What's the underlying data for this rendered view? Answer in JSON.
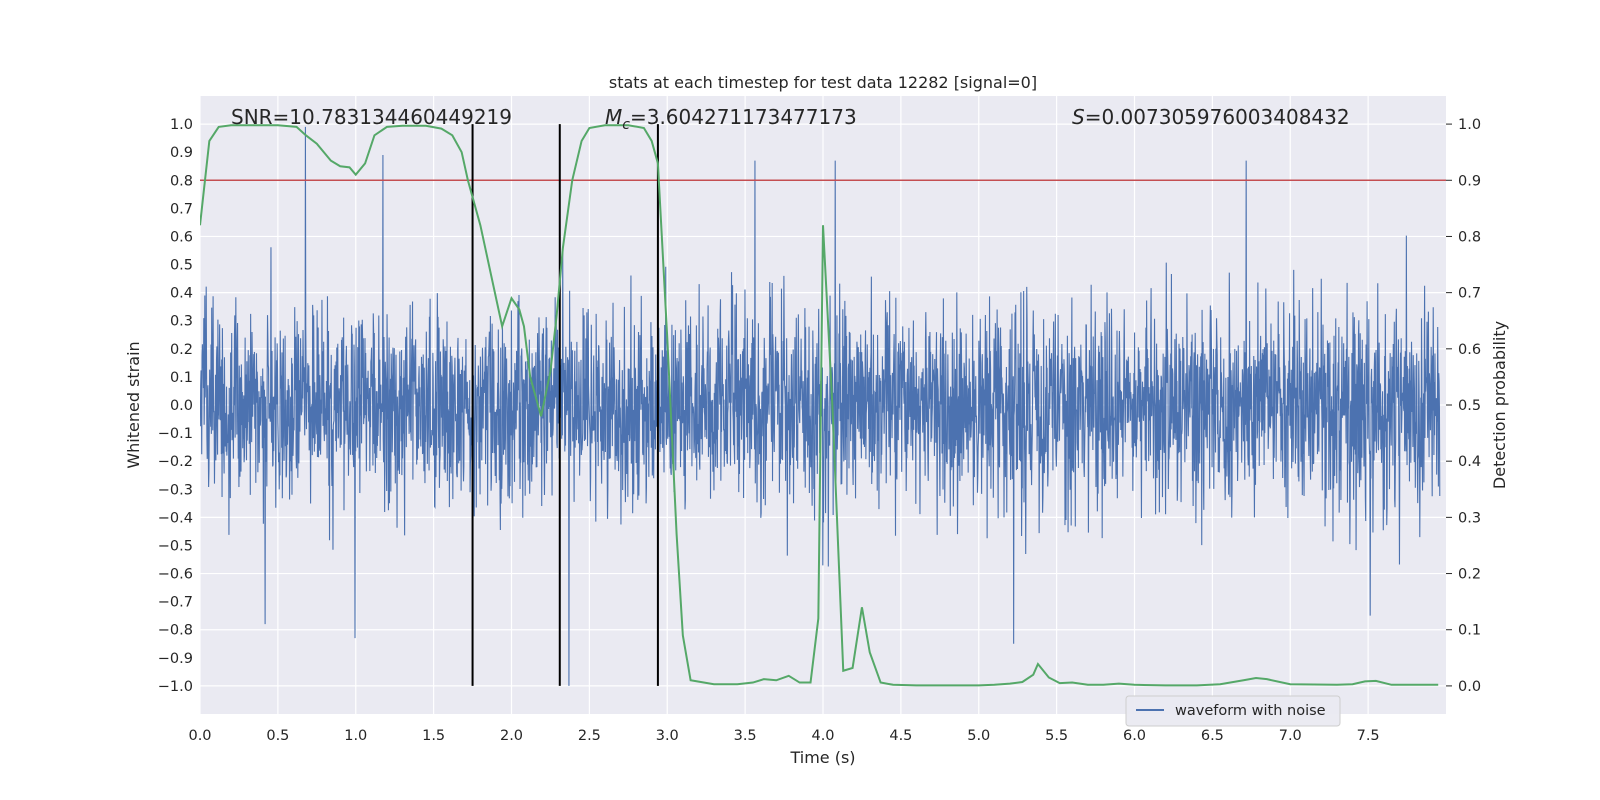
{
  "chart_data": {
    "type": "line",
    "title": "stats at each timestep for test data 12282 [signal=0]",
    "xlabel": "Time (s)",
    "ylabel": "Whitened strain",
    "y2label": "Detection probability",
    "xlim": [
      0,
      8.0
    ],
    "ylim": [
      -1.1,
      1.1
    ],
    "y2lim": [
      -0.05,
      1.05
    ],
    "xticks": [
      0.0,
      0.5,
      1.0,
      1.5,
      2.0,
      2.5,
      3.0,
      3.5,
      4.0,
      4.5,
      5.0,
      5.5,
      6.0,
      6.5,
      7.0,
      7.5
    ],
    "xtick_labels": [
      "0.0",
      "0.5",
      "1.0",
      "1.5",
      "2.0",
      "2.5",
      "3.0",
      "3.5",
      "4.0",
      "4.5",
      "5.0",
      "5.5",
      "6.0",
      "6.5",
      "7.0",
      "7.5"
    ],
    "yticks": [
      -1.0,
      -0.9,
      -0.8,
      -0.7,
      -0.6,
      -0.5,
      -0.4,
      -0.3,
      -0.2,
      -0.1,
      0.0,
      0.1,
      0.2,
      0.3,
      0.4,
      0.5,
      0.6,
      0.7,
      0.8,
      0.9,
      1.0
    ],
    "ytick_labels": [
      "−1.0",
      "−0.9",
      "−0.8",
      "−0.7",
      "−0.6",
      "−0.5",
      "−0.4",
      "−0.3",
      "−0.2",
      "−0.1",
      "0.0",
      "0.1",
      "0.2",
      "0.3",
      "0.4",
      "0.5",
      "0.6",
      "0.7",
      "0.8",
      "0.9",
      "1.0"
    ],
    "y2ticks": [
      0.0,
      0.1,
      0.2,
      0.3,
      0.4,
      0.5,
      0.6,
      0.7,
      0.8,
      0.9,
      1.0
    ],
    "y2tick_labels": [
      "0.0",
      "0.1",
      "0.2",
      "0.3",
      "0.4",
      "0.5",
      "0.6",
      "0.7",
      "0.8",
      "0.9",
      "1.0"
    ],
    "grid": true,
    "legend": {
      "location": "lower-right",
      "entries": [
        "waveform with noise"
      ]
    },
    "annotations": {
      "snr": "SNR=10.783134460449219",
      "mc_symbol": "M",
      "mc_sub": "c",
      "mc_value": "=3.604271173477173",
      "s_symbol": "S",
      "s_value": "=0.007305976003408432"
    },
    "threshold": {
      "y2": 0.9,
      "color": "#c44e52"
    },
    "vertical_lines": [
      1.75,
      2.31,
      2.94
    ],
    "waveform": {
      "name": "waveform with noise",
      "color": "#4c72b0",
      "note": "noise envelope (data units); rendered as dense noise",
      "envelope": [
        {
          "t_start": 0.0,
          "t_end": 8.0,
          "typical_max": 0.45,
          "typical_min": -0.45
        }
      ],
      "notable_peaks": [
        {
          "t": 0.68,
          "value": 0.99
        },
        {
          "t": 1.18,
          "value": 0.89
        },
        {
          "t": 2.38,
          "value": -1.0
        },
        {
          "t": 3.58,
          "value": 0.87
        },
        {
          "t": 4.1,
          "value": 0.87
        },
        {
          "t": 5.25,
          "value": -0.85
        },
        {
          "t": 6.75,
          "value": 0.87
        },
        {
          "t": 1.0,
          "value": -0.83
        },
        {
          "t": 0.42,
          "value": -0.78
        },
        {
          "t": 7.55,
          "value": -0.75
        }
      ]
    },
    "detection_probability": {
      "name": "detection probability",
      "color": "#55a868",
      "x": [
        0.0,
        0.06,
        0.12,
        0.2,
        0.3,
        0.5,
        0.62,
        0.68,
        0.75,
        0.84,
        0.9,
        0.96,
        1.0,
        1.06,
        1.12,
        1.2,
        1.3,
        1.45,
        1.55,
        1.62,
        1.68,
        1.72,
        1.8,
        1.87,
        1.94,
        2.0,
        2.05,
        2.08,
        2.12,
        2.19,
        2.25,
        2.29,
        2.33,
        2.39,
        2.45,
        2.5,
        2.6,
        2.75,
        2.85,
        2.9,
        2.94,
        3.0,
        3.06,
        3.1,
        3.15,
        3.3,
        3.45,
        3.55,
        3.62,
        3.7,
        3.78,
        3.85,
        3.92,
        3.97,
        4.0,
        4.06,
        4.13,
        4.19,
        4.25,
        4.3,
        4.37,
        4.45,
        4.6,
        4.8,
        5.0,
        5.1,
        5.2,
        5.28,
        5.35,
        5.38,
        5.45,
        5.52,
        5.6,
        5.7,
        5.8,
        5.9,
        6.0,
        6.2,
        6.4,
        6.55,
        6.7,
        6.78,
        6.85,
        7.0,
        7.3,
        7.4,
        7.48,
        7.55,
        7.65,
        7.95
      ],
      "y": [
        0.82,
        0.97,
        0.995,
        0.998,
        0.998,
        0.998,
        0.995,
        0.98,
        0.965,
        0.935,
        0.925,
        0.923,
        0.91,
        0.93,
        0.98,
        0.995,
        0.997,
        0.997,
        0.992,
        0.98,
        0.95,
        0.9,
        0.82,
        0.73,
        0.64,
        0.69,
        0.67,
        0.64,
        0.55,
        0.48,
        0.56,
        0.66,
        0.78,
        0.9,
        0.97,
        0.993,
        0.998,
        0.998,
        0.993,
        0.97,
        0.93,
        0.62,
        0.27,
        0.09,
        0.01,
        0.003,
        0.003,
        0.006,
        0.012,
        0.01,
        0.018,
        0.006,
        0.006,
        0.12,
        0.82,
        0.5,
        0.027,
        0.032,
        0.14,
        0.06,
        0.006,
        0.002,
        0.001,
        0.001,
        0.001,
        0.002,
        0.004,
        0.007,
        0.02,
        0.039,
        0.015,
        0.005,
        0.006,
        0.002,
        0.002,
        0.004,
        0.002,
        0.001,
        0.001,
        0.003,
        0.01,
        0.014,
        0.012,
        0.003,
        0.002,
        0.003,
        0.008,
        0.009,
        0.002,
        0.002
      ]
    }
  }
}
